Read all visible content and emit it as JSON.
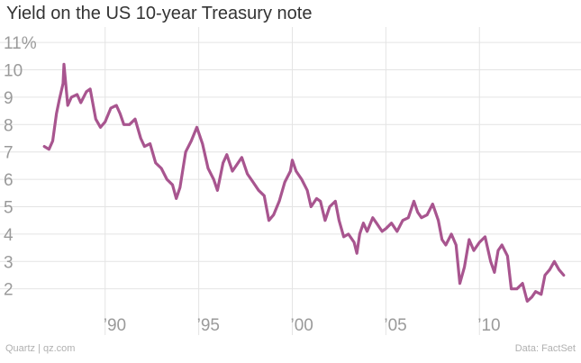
{
  "title": "Yield on the US 10-year Treasury note",
  "source": "Data: FactSet",
  "credit": "Quartz | qz.com",
  "colors": {
    "line": "#a8558f",
    "grid": "#e4e4e4",
    "tick": "#9a9a9a"
  },
  "chart_data": {
    "type": "line",
    "title": "Yield on the US 10-year Treasury note",
    "xlabel": "",
    "ylabel": "",
    "xlim": [
      1986.5,
      2014.8
    ],
    "ylim": [
      1.2,
      11.3
    ],
    "grid": true,
    "y_ticks": [
      {
        "value": 2,
        "label": "2"
      },
      {
        "value": 3,
        "label": "3"
      },
      {
        "value": 4,
        "label": "4"
      },
      {
        "value": 5,
        "label": "5"
      },
      {
        "value": 6,
        "label": "6"
      },
      {
        "value": 7,
        "label": "7"
      },
      {
        "value": 8,
        "label": "8"
      },
      {
        "value": 9,
        "label": "9"
      },
      {
        "value": 10,
        "label": "10"
      },
      {
        "value": 11,
        "label": "11%"
      }
    ],
    "x_ticks": [
      {
        "value": 1990,
        "label": "’90"
      },
      {
        "value": 1995,
        "label": "’95"
      },
      {
        "value": 2000,
        "label": "’00"
      },
      {
        "value": 2005,
        "label": "’05"
      },
      {
        "value": 2010,
        "label": "’10"
      }
    ],
    "series": [
      {
        "x": [
          1986.75,
          1987.0,
          1987.2,
          1987.4,
          1987.55,
          1987.75,
          1987.8,
          1988.0,
          1988.2,
          1988.5,
          1988.7,
          1989.0,
          1989.2,
          1989.5,
          1989.75,
          1990.0,
          1990.3,
          1990.6,
          1990.8,
          1991.0,
          1991.3,
          1991.6,
          1991.9,
          1992.1,
          1992.4,
          1992.7,
          1993.0,
          1993.3,
          1993.6,
          1993.8,
          1994.0,
          1994.3,
          1994.6,
          1994.9,
          1995.2,
          1995.5,
          1995.8,
          1996.0,
          1996.3,
          1996.5,
          1996.8,
          1997.0,
          1997.3,
          1997.6,
          1997.9,
          1998.2,
          1998.5,
          1998.75,
          1999.0,
          1999.3,
          1999.6,
          1999.9,
          2000.0,
          2000.2,
          2000.5,
          2000.8,
          2001.0,
          2001.3,
          2001.5,
          2001.75,
          2002.0,
          2002.3,
          2002.5,
          2002.75,
          2003.0,
          2003.3,
          2003.45,
          2003.6,
          2003.8,
          2004.0,
          2004.3,
          2004.5,
          2004.8,
          2005.0,
          2005.3,
          2005.6,
          2005.9,
          2006.2,
          2006.5,
          2006.7,
          2006.9,
          2007.2,
          2007.5,
          2007.8,
          2008.0,
          2008.2,
          2008.5,
          2008.75,
          2008.95,
          2009.2,
          2009.45,
          2009.7,
          2010.0,
          2010.3,
          2010.6,
          2010.8,
          2011.0,
          2011.2,
          2011.5,
          2011.7,
          2012.0,
          2012.3,
          2012.55,
          2012.8,
          2013.0,
          2013.3,
          2013.5,
          2013.75,
          2014.0,
          2014.25,
          2014.5
        ],
        "values": [
          7.2,
          7.1,
          7.4,
          8.4,
          8.9,
          9.5,
          10.2,
          8.7,
          9.0,
          9.1,
          8.8,
          9.2,
          9.3,
          8.2,
          7.9,
          8.1,
          8.6,
          8.7,
          8.4,
          8.0,
          8.0,
          8.2,
          7.5,
          7.2,
          7.3,
          6.6,
          6.4,
          6.0,
          5.8,
          5.3,
          5.7,
          7.0,
          7.4,
          7.9,
          7.3,
          6.4,
          6.0,
          5.6,
          6.6,
          6.9,
          6.3,
          6.5,
          6.8,
          6.2,
          5.9,
          5.6,
          5.4,
          4.5,
          4.7,
          5.2,
          5.9,
          6.3,
          6.7,
          6.3,
          6.0,
          5.6,
          5.0,
          5.3,
          5.2,
          4.5,
          5.0,
          5.2,
          4.5,
          3.9,
          4.0,
          3.7,
          3.3,
          4.0,
          4.4,
          4.1,
          4.6,
          4.4,
          4.1,
          4.2,
          4.4,
          4.1,
          4.5,
          4.6,
          5.2,
          4.8,
          4.6,
          4.7,
          5.1,
          4.5,
          3.8,
          3.6,
          4.0,
          3.6,
          2.2,
          2.8,
          3.8,
          3.4,
          3.7,
          3.9,
          3.0,
          2.6,
          3.4,
          3.6,
          3.2,
          2.0,
          2.0,
          2.2,
          1.55,
          1.7,
          1.9,
          1.8,
          2.5,
          2.7,
          3.0,
          2.7,
          2.5
        ]
      }
    ]
  }
}
